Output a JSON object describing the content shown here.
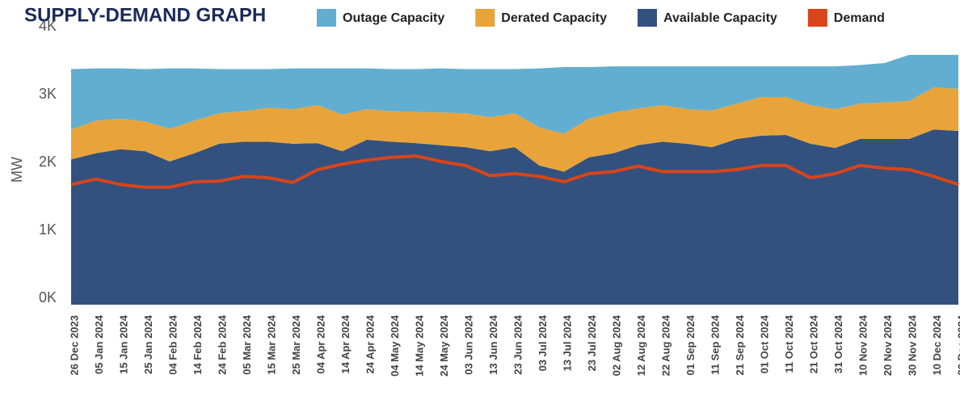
{
  "chart_data": {
    "type": "stacked_area",
    "title": "SUPPLY-DEMAND GRAPH",
    "y_label": "MW",
    "categories": [
      "26 Dec 2023",
      "05 Jan 2024",
      "15 Jan 2024",
      "25 Jan 2024",
      "04 Feb 2024",
      "14 Feb 2024",
      "24 Feb 2024",
      "05 Mar 2024",
      "15 Mar 2024",
      "25 Mar 2024",
      "04 Apr 2024",
      "14 Apr 2024",
      "24 Apr 2024",
      "04 May 2024",
      "14 May 2024",
      "24 May 2024",
      "03 Jun 2024",
      "13 Jun 2024",
      "23 Jun 2024",
      "03 Jul 2024",
      "13 Jul 2024",
      "23 Jul 2024",
      "02 Aug 2024",
      "12 Aug 2024",
      "22 Aug 2024",
      "01 Sep 2024",
      "11 Sep 2024",
      "21 Sep 2024",
      "01 Oct 2024",
      "11 Oct 2024",
      "21 Oct 2024",
      "31 Oct 2024",
      "10 Nov 2024",
      "20 Nov 2024",
      "30 Nov 2024",
      "10 Dec 2024",
      "20 Dec 2024"
    ],
    "series": [
      {
        "name": "Available Capacity",
        "color": "#33517e",
        "stack": true,
        "values": [
          2140,
          2230,
          2290,
          2260,
          2110,
          2230,
          2370,
          2400,
          2400,
          2370,
          2380,
          2260,
          2430,
          2400,
          2380,
          2350,
          2320,
          2260,
          2320,
          2050,
          1960,
          2170,
          2230,
          2350,
          2400,
          2370,
          2320,
          2440,
          2490,
          2500,
          2370,
          2310,
          2440,
          2440,
          2440,
          2580,
          2560
        ]
      },
      {
        "name": "Derated Capacity",
        "color": "#e8a43a",
        "stack": true,
        "values": [
          440,
          480,
          450,
          440,
          480,
          480,
          450,
          450,
          500,
          510,
          560,
          540,
          450,
          450,
          460,
          480,
          500,
          500,
          500,
          560,
          560,
          570,
          600,
          540,
          540,
          510,
          540,
          520,
          570,
          560,
          570,
          570,
          520,
          540,
          560,
          620,
          620
        ]
      },
      {
        "name": "Outage Capacity",
        "color": "#62aed0",
        "stack": true,
        "values": [
          890,
          770,
          740,
          770,
          890,
          770,
          650,
          620,
          570,
          600,
          540,
          680,
          600,
          620,
          630,
          650,
          650,
          710,
          650,
          870,
          980,
          760,
          680,
          620,
          570,
          630,
          650,
          550,
          450,
          450,
          570,
          630,
          570,
          580,
          680,
          480,
          500
        ]
      },
      {
        "name": "Demand",
        "color": "#d9441a",
        "stack": false,
        "values": [
          1770,
          1850,
          1770,
          1730,
          1730,
          1810,
          1820,
          1890,
          1870,
          1800,
          1990,
          2070,
          2130,
          2170,
          2190,
          2110,
          2050,
          1900,
          1930,
          1890,
          1810,
          1930,
          1960,
          2040,
          1960,
          1960,
          1960,
          1990,
          2050,
          2050,
          1870,
          1930,
          2050,
          2010,
          1990,
          1890,
          1770
        ]
      }
    ],
    "legend_order": [
      "Outage Capacity",
      "Derated Capacity",
      "Available Capacity",
      "Demand"
    ],
    "ylim": [
      0,
      4000
    ],
    "yticks": [
      {
        "value": 0,
        "label": "0K"
      },
      {
        "value": 1000,
        "label": "1K"
      },
      {
        "value": 2000,
        "label": "2K"
      },
      {
        "value": 3000,
        "label": "3K"
      },
      {
        "value": 4000,
        "label": "4K"
      }
    ],
    "grid": false
  }
}
